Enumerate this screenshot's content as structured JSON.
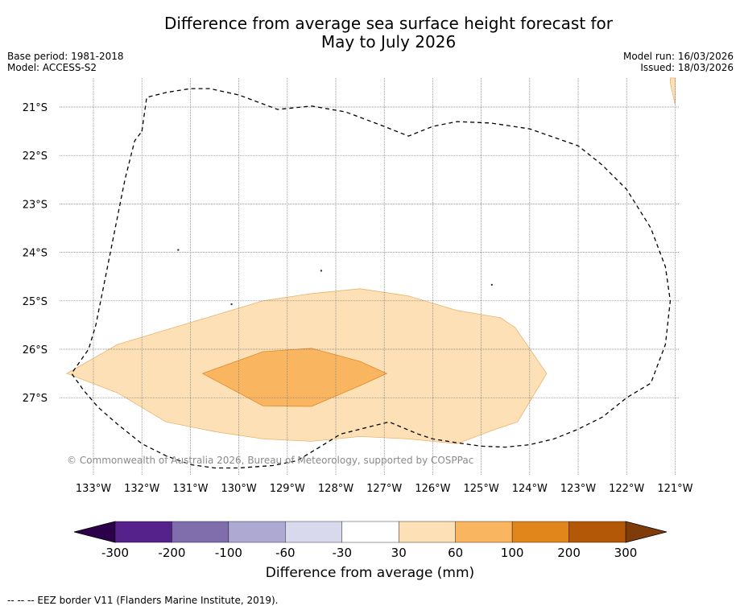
{
  "title": {
    "line1": "Difference from average sea surface height forecast for",
    "line2": "May to July 2026"
  },
  "meta": {
    "base_period": "Base period: 1981-2018",
    "model": "Model: ACCESS-S2",
    "model_run": "Model run: 16/03/2026",
    "issued": "Issued: 18/03/2026"
  },
  "map": {
    "lat_labels": [
      "21°S",
      "22°S",
      "23°S",
      "24°S",
      "25°S",
      "26°S",
      "27°S"
    ],
    "lon_labels": [
      "133°W",
      "132°W",
      "131°W",
      "130°W",
      "129°W",
      "128°W",
      "127°W",
      "126°W",
      "125°W",
      "124°W",
      "123°W",
      "122°W",
      "121°W"
    ],
    "copyright": "© Commonwealth of Australia 2026, Bureau of Meteorology, supported by COSPPac",
    "extent": {
      "lon_min": -133.6,
      "lon_max": -120.9,
      "lat_min": -28.4,
      "lat_max": -20.4
    },
    "contours": [
      {
        "name": "positive-30-60-region",
        "color": "#fde0b6",
        "stroke": "#e8b46e",
        "points": [
          [
            -133.55,
            -26.5
          ],
          [
            -132.5,
            -25.9
          ],
          [
            -131.5,
            -25.6
          ],
          [
            -130.5,
            -25.3
          ],
          [
            -129.5,
            -25.0
          ],
          [
            -128.5,
            -24.85
          ],
          [
            -127.5,
            -24.75
          ],
          [
            -126.5,
            -24.9
          ],
          [
            -125.5,
            -25.2
          ],
          [
            -124.6,
            -25.35
          ],
          [
            -124.3,
            -25.55
          ],
          [
            -123.65,
            -26.5
          ],
          [
            -124.25,
            -27.5
          ],
          [
            -124.7,
            -27.65
          ],
          [
            -125.5,
            -27.95
          ],
          [
            -126.5,
            -27.85
          ],
          [
            -127.5,
            -27.8
          ],
          [
            -128.5,
            -27.9
          ],
          [
            -129.5,
            -27.85
          ],
          [
            -130.5,
            -27.7
          ],
          [
            -131.5,
            -27.5
          ],
          [
            -132.5,
            -26.9
          ],
          [
            -133.55,
            -26.5
          ]
        ]
      },
      {
        "name": "positive-60-100-region",
        "color": "#f9b560",
        "stroke": "#e08a2a",
        "points": [
          [
            -130.75,
            -26.5
          ],
          [
            -129.5,
            -26.05
          ],
          [
            -128.5,
            -25.98
          ],
          [
            -127.5,
            -26.25
          ],
          [
            -126.95,
            -26.5
          ],
          [
            -127.5,
            -26.75
          ],
          [
            -128.5,
            -27.18
          ],
          [
            -129.5,
            -27.17
          ],
          [
            -130.75,
            -26.5
          ]
        ]
      },
      {
        "name": "top-right-30-60-patch",
        "color": "#fde0b6",
        "stroke": "#e8b46e",
        "points": [
          [
            -121.1,
            -20.4
          ],
          [
            -121.0,
            -20.4
          ],
          [
            -121.0,
            -20.95
          ],
          [
            -121.1,
            -20.5
          ]
        ]
      }
    ],
    "specks": [
      {
        "lon": -131.25,
        "lat": -23.95
      },
      {
        "lon": -128.3,
        "lat": -24.38
      },
      {
        "lon": -124.78,
        "lat": -24.67
      },
      {
        "lon": -130.15,
        "lat": -25.07
      }
    ],
    "eez_border": [
      [
        -132.0,
        -21.5
      ],
      [
        -131.9,
        -20.8
      ],
      [
        -131.5,
        -20.7
      ],
      [
        -131.0,
        -20.62
      ],
      [
        -130.6,
        -20.62
      ],
      [
        -130.0,
        -20.75
      ],
      [
        -129.6,
        -20.9
      ],
      [
        -129.2,
        -21.05
      ],
      [
        -128.5,
        -20.98
      ],
      [
        -127.8,
        -21.1
      ],
      [
        -127.0,
        -21.4
      ],
      [
        -126.5,
        -21.6
      ],
      [
        -126.0,
        -21.4
      ],
      [
        -125.5,
        -21.3
      ],
      [
        -124.8,
        -21.33
      ],
      [
        -124.0,
        -21.45
      ],
      [
        -123.0,
        -21.8
      ],
      [
        -122.5,
        -22.2
      ],
      [
        -122.0,
        -22.7
      ],
      [
        -121.5,
        -23.5
      ],
      [
        -121.2,
        -24.3
      ],
      [
        -121.1,
        -25.0
      ],
      [
        -121.2,
        -25.9
      ],
      [
        -121.5,
        -26.7
      ],
      [
        -122.0,
        -27.0
      ],
      [
        -122.5,
        -27.4
      ],
      [
        -123.0,
        -27.65
      ],
      [
        -123.5,
        -27.85
      ],
      [
        -124.0,
        -27.97
      ],
      [
        -124.5,
        -28.02
      ],
      [
        -125.0,
        -28.0
      ],
      [
        -125.5,
        -27.93
      ],
      [
        -126.0,
        -27.85
      ],
      [
        -126.3,
        -27.75
      ],
      [
        -126.9,
        -27.5
      ],
      [
        -127.3,
        -27.6
      ],
      [
        -127.9,
        -27.75
      ],
      [
        -128.3,
        -28.0
      ],
      [
        -128.8,
        -28.3
      ],
      [
        -129.3,
        -28.4
      ],
      [
        -130.0,
        -28.45
      ],
      [
        -130.5,
        -28.45
      ],
      [
        -131.0,
        -28.38
      ],
      [
        -131.5,
        -28.2
      ],
      [
        -132.0,
        -27.95
      ],
      [
        -132.5,
        -27.55
      ],
      [
        -132.9,
        -27.2
      ],
      [
        -133.2,
        -26.85
      ],
      [
        -133.45,
        -26.5
      ],
      [
        -133.1,
        -26.0
      ],
      [
        -132.95,
        -25.5
      ],
      [
        -132.75,
        -24.5
      ],
      [
        -132.55,
        -23.5
      ],
      [
        -132.35,
        -22.5
      ],
      [
        -132.15,
        -21.7
      ],
      [
        -132.0,
        -21.5
      ]
    ]
  },
  "colorbar": {
    "title": "Difference from average (mm)",
    "ticks": [
      "-300",
      "-200",
      "-100",
      "-60",
      "-30",
      "30",
      "60",
      "100",
      "200",
      "300"
    ],
    "colors": [
      "#55218a",
      "#7f6eab",
      "#aea9d2",
      "#d9d9ed",
      "#ffffff",
      "#fde0b6",
      "#f9b560",
      "#e0861b",
      "#b35806"
    ],
    "under_color": "#2d004b",
    "over_color": "#7f3b08"
  },
  "footer": "--  --  -- EEZ border V11 (Flanders Marine Institute, 2019)."
}
